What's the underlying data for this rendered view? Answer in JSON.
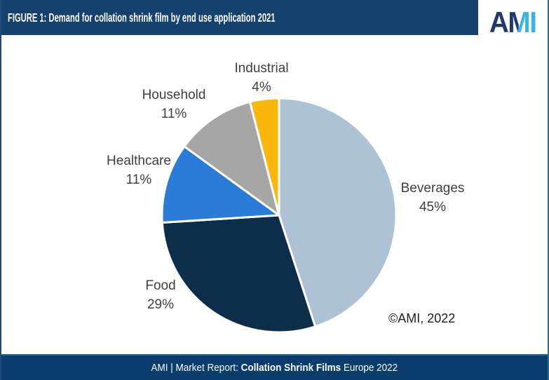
{
  "header": {
    "title": "FIGURE 1: Demand for collation shrink film by end use application 2021",
    "logo": {
      "a": "A",
      "m": "M",
      "i": "I",
      "navy": "#1e3a6e",
      "cyan": "#35b4e5"
    }
  },
  "chart_data": {
    "type": "pie",
    "title": "Demand for collation shrink film by end use application 2021",
    "legend": "none",
    "labels_position": "outside",
    "start_angle_deg": 0,
    "direction": "clockwise",
    "slices": [
      {
        "label": "Beverages",
        "value": 45,
        "pct_label": "45%",
        "color": "#aec2d6"
      },
      {
        "label": "Food",
        "value": 29,
        "pct_label": "29%",
        "color": "#0d2e4b"
      },
      {
        "label": "Healthcare",
        "value": 11,
        "pct_label": "11%",
        "color": "#2b7cd9"
      },
      {
        "label": "Household",
        "value": 11,
        "pct_label": "11%",
        "color": "#a6a6a6"
      },
      {
        "label": "Industrial",
        "value": 4,
        "pct_label": "4%",
        "color": "#fbb80c"
      }
    ],
    "copyright": "©AMI, 2022"
  },
  "footer": {
    "prefix": "AMI | Market Report: ",
    "bold": "Collation Shrink Films",
    "suffix": " Europe 2022"
  },
  "colors": {
    "header_bg": "#15416f",
    "footer_bg": "#0a3c6e",
    "footer_top_line": "#2e6e96",
    "label_text": "#3f3f3f",
    "slice_stroke": "#ffffff"
  }
}
